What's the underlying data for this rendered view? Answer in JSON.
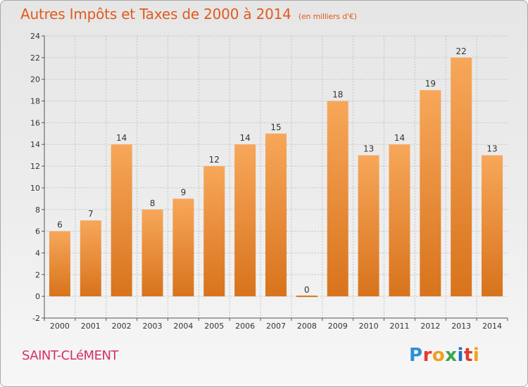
{
  "chart_data": {
    "type": "bar",
    "title": "Autres Impôts et Taxes de 2000 à 2014",
    "subtitle": "(en milliers d'€)",
    "categories": [
      "2000",
      "2001",
      "2002",
      "2003",
      "2004",
      "2005",
      "2006",
      "2007",
      "2008",
      "2009",
      "2010",
      "2011",
      "2012",
      "2013",
      "2014"
    ],
    "values": [
      6,
      7,
      14,
      8,
      9,
      12,
      14,
      15,
      0,
      18,
      13,
      14,
      19,
      22,
      13
    ],
    "ylim": [
      -2,
      24
    ],
    "yticks": [
      "-2",
      "0",
      "2",
      "4",
      "6",
      "8",
      "10",
      "12",
      "14",
      "16",
      "18",
      "20",
      "22",
      "24"
    ],
    "grid": true,
    "colors": {
      "bar_light": "#f7a75a",
      "bar_dark": "#d8731c",
      "title": "#e05a1e",
      "town": "#d62e66"
    }
  },
  "footer": {
    "town": "SAINT-CLéMENT",
    "logo": "Proxiti"
  }
}
